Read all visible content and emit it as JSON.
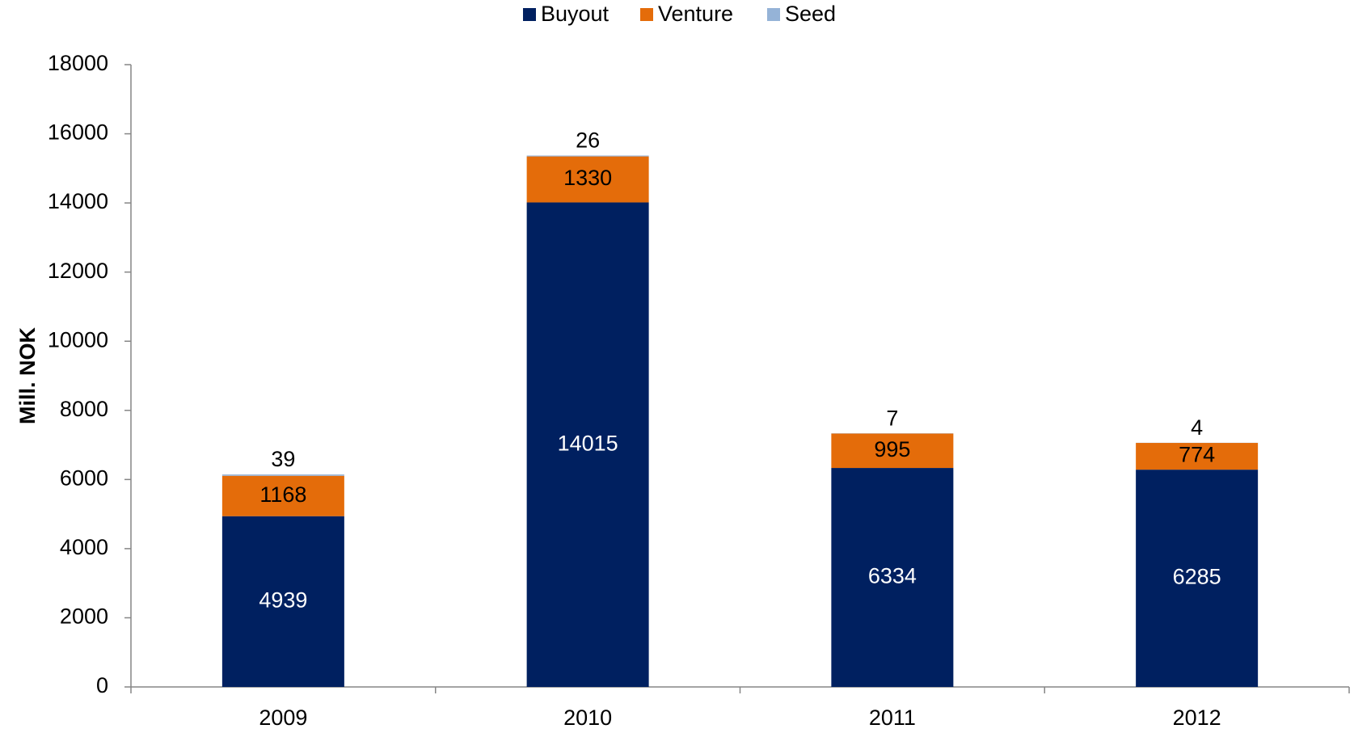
{
  "chart_data": {
    "type": "stacked_bar",
    "y_label": "Mill. NOK",
    "categories": [
      "2009",
      "2010",
      "2011",
      "2012"
    ],
    "series": [
      {
        "name": "Buyout",
        "color": "#002060",
        "values": [
          4939,
          14015,
          6334,
          6285
        ]
      },
      {
        "name": "Venture",
        "color": "#e46c0a",
        "values": [
          1168,
          1330,
          995,
          774
        ]
      },
      {
        "name": "Seed",
        "color": "#95b3d7",
        "values": [
          39,
          26,
          7,
          4
        ]
      }
    ],
    "ylim": [
      0,
      18000
    ],
    "yticks": [
      0,
      2000,
      4000,
      6000,
      8000,
      10000,
      12000,
      14000,
      16000,
      18000
    ],
    "legend": "top"
  }
}
